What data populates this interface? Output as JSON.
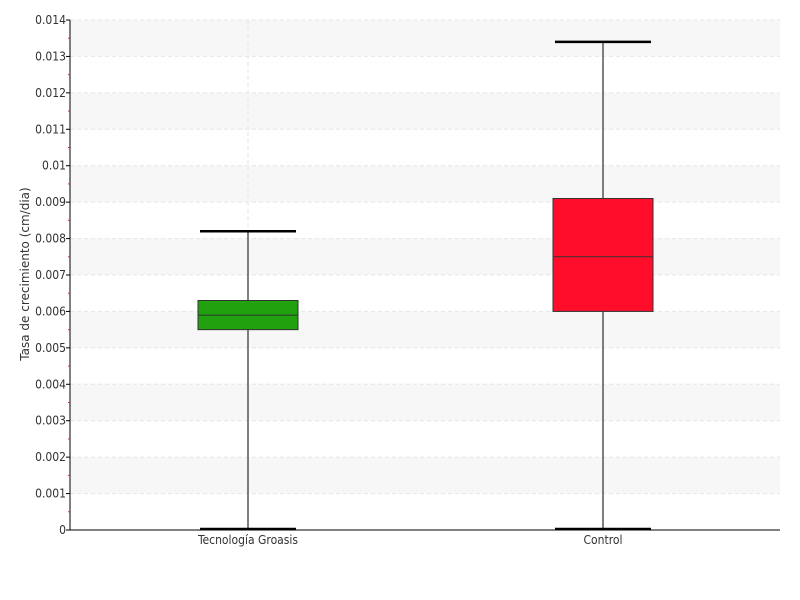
{
  "chart_data": {
    "type": "boxplot",
    "ylabel": "Tasa de crecimiento (cm/dia)",
    "ylim": [
      0,
      0.014
    ],
    "yticks": [
      0,
      0.001,
      0.002,
      0.003,
      0.004,
      0.005,
      0.006,
      0.007,
      0.008,
      0.009,
      0.01,
      0.011,
      0.012,
      0.013,
      0.014
    ],
    "ytick_labels": [
      "0",
      "0.001",
      "0.002",
      "0.003",
      "0.004",
      "0.005",
      "0.006",
      "0.007",
      "0.008",
      "0.009",
      "0.01",
      "0.011",
      "0.012",
      "0.013",
      "0.014"
    ],
    "grid": true,
    "categories": [
      "Tecnología Groasis",
      "Control"
    ],
    "boxes": [
      {
        "category": "Tecnología Groasis",
        "min": 0.0,
        "q1": 0.0055,
        "median": 0.0059,
        "q3": 0.0063,
        "max": 0.0082,
        "color": "#22a10f"
      },
      {
        "category": "Control",
        "min": 0.0,
        "q1": 0.006,
        "median": 0.0075,
        "q3": 0.0091,
        "max": 0.0134,
        "color": "#ff0d2b"
      }
    ]
  }
}
